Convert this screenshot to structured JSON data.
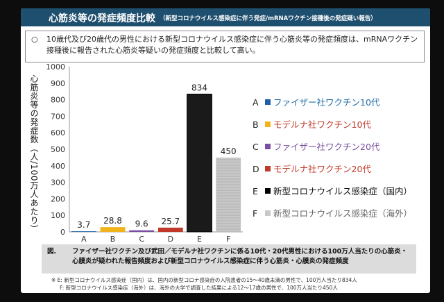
{
  "header": {
    "title": "心筋炎等の発症頻度比較",
    "subtitle": "（新型コロナウイルス感染症に伴う発症/mRNAワクチン接種後の発症疑い報告）"
  },
  "note": {
    "bullet": "○",
    "text": "10歳代及び20歳代の男性における新型コロナウイルス感染症に伴う心筋炎等の発症頻度は、mRNAワクチン接種後に報告された心筋炎等疑いの発症頻度と比較して高い。"
  },
  "chart_data": {
    "type": "bar",
    "ylabel": "心筋炎等の発症数（人/100万人あたり）",
    "ylim": [
      0,
      1000
    ],
    "yticks": [
      "0",
      "100",
      "200",
      "300",
      "400",
      "500",
      "600",
      "700",
      "800",
      "900",
      "1000"
    ],
    "categories": [
      "A",
      "B",
      "C",
      "D",
      "E",
      "F"
    ],
    "values": [
      3.7,
      28.8,
      9.6,
      25.7,
      834,
      450
    ],
    "value_labels": [
      "3.7",
      "28.8",
      "9.6",
      "25.7",
      "834",
      "450"
    ],
    "colors": [
      "#1f5fa8",
      "#f2b21c",
      "#7a4ea0",
      "#c0392b",
      "#1a1a1a",
      "#c8c8c8"
    ],
    "grid": false,
    "legend_position": "right"
  },
  "legend": [
    {
      "letter": "A",
      "label": "ファイザー社ワクチン10代",
      "color": "#1f5fa8",
      "text_color": "#1f6fa8"
    },
    {
      "letter": "B",
      "label": "モデルナ社ワクチン10代",
      "color": "#f2b21c",
      "text_color": "#c0392b"
    },
    {
      "letter": "C",
      "label": "ファイザー社ワクチン20代",
      "color": "#7a4ea0",
      "text_color": "#7a4ea0"
    },
    {
      "letter": "D",
      "label": "モデルナ社ワクチン20代",
      "color": "#c0392b",
      "text_color": "#c0392b"
    },
    {
      "letter": "E",
      "label": "新型コロナウイルス感染症（国内）",
      "color": "#1a1a1a",
      "text_color": "#111111"
    },
    {
      "letter": "F",
      "label": "新型コロナウイルス感染症（海外）",
      "color": "#c8c8c8",
      "text_color": "#666666"
    }
  ],
  "caption": {
    "fig": "図.",
    "text": "ファイザー社ワクチン及び武田／モデルナ社ワクチンに係る10代・20代男性における100万人当たりの心筋炎・心膜炎が疑われた報告頻度および新型コロナウイルス感染症に伴う心筋炎・心膜炎の発症頻度"
  },
  "footnote": {
    "line1": "※ E: 新型コロナウイルス感染症（国内）は、国内の新型コロナ感染症の入院患者の15〜40歳未満の男性で、100万人当たり834人",
    "line2": "F: 新型コロナウイルス感染症（海外）は、海外の大学で調査した結果による12〜17歳の男性で、100万人当たり450人"
  }
}
